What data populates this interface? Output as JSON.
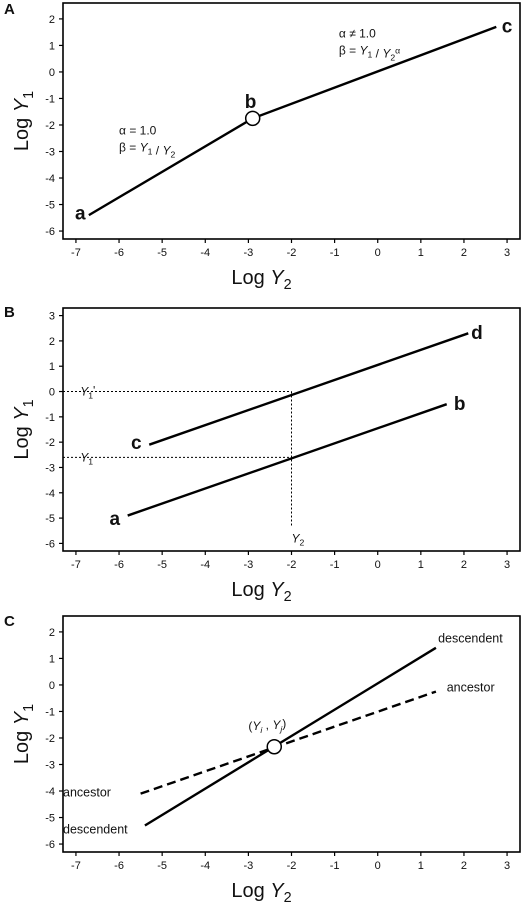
{
  "chart_data": [
    {
      "type": "line",
      "panel_label": "A",
      "xlabel": "Log Y2",
      "ylabel": "Log Y1",
      "xlim": [
        -7.3,
        3.3
      ],
      "ylim": [
        -6.3,
        2.6
      ],
      "xticks": [
        -7,
        -6,
        -5,
        -4,
        -3,
        -2,
        -1,
        0,
        1,
        2,
        3
      ],
      "yticks": [
        -6,
        -5,
        -4,
        -3,
        -2,
        -1,
        0,
        1,
        2
      ],
      "series": [
        {
          "points": [
            [
              -6.7,
              -5.4
            ],
            [
              -2.9,
              -1.75
            ],
            [
              2.75,
              1.7
            ]
          ],
          "style": "solid",
          "color": "#000000"
        }
      ],
      "markers": [
        {
          "x": -2.9,
          "y": -1.75,
          "shape": "open-circle"
        }
      ],
      "point_labels": [
        {
          "text": "a",
          "x": -6.9,
          "y": -5.3
        },
        {
          "text": "b",
          "x": -2.95,
          "y": -1.1
        },
        {
          "text": "c",
          "x": 3.0,
          "y": 1.75
        }
      ],
      "annotations": [
        {
          "lines": [
            "α = 1.0",
            "β = Y1 / Y2"
          ],
          "x": -6.0,
          "y": -2.35
        },
        {
          "lines": [
            "α ≠ 1.0",
            "β = Y1 / Y2α"
          ],
          "x": -0.9,
          "y": 1.3
        }
      ]
    },
    {
      "type": "line",
      "panel_label": "B",
      "xlabel": "Log Y2",
      "ylabel": "Log Y1",
      "xlim": [
        -7.3,
        3.3
      ],
      "ylim": [
        -6.3,
        3.3
      ],
      "xticks": [
        -7,
        -6,
        -5,
        -4,
        -3,
        -2,
        -1,
        0,
        1,
        2,
        3
      ],
      "yticks": [
        -6,
        -5,
        -4,
        -3,
        -2,
        -1,
        0,
        1,
        2,
        3
      ],
      "series": [
        {
          "points": [
            [
              -5.8,
              -4.9
            ],
            [
              1.6,
              -0.5
            ]
          ],
          "style": "solid",
          "color": "#000000"
        },
        {
          "points": [
            [
              -5.3,
              -2.1
            ],
            [
              2.1,
              2.3
            ]
          ],
          "style": "solid",
          "color": "#000000"
        }
      ],
      "guides": [
        {
          "points": [
            [
              -7.3,
              -2.6
            ],
            [
              -2.0,
              -2.6
            ]
          ],
          "style": "dotted"
        },
        {
          "points": [
            [
              -7.3,
              0.0
            ],
            [
              -2.0,
              0.0
            ]
          ],
          "style": "dotted"
        },
        {
          "points": [
            [
              -2.0,
              0.0
            ],
            [
              -2.0,
              -5.3
            ]
          ],
          "style": "dotted"
        }
      ],
      "point_labels": [
        {
          "text": "a",
          "x": -6.1,
          "y": -5.0
        },
        {
          "text": "b",
          "x": 1.9,
          "y": -0.45
        },
        {
          "text": "c",
          "x": -5.6,
          "y": -2.0
        },
        {
          "text": "d",
          "x": 2.3,
          "y": 2.35
        }
      ],
      "guide_labels": [
        {
          "text": "Y1'",
          "x": -6.9,
          "y": 0.0
        },
        {
          "text": "Y1",
          "x": -6.9,
          "y": -2.6
        },
        {
          "text": "Y2",
          "x": -2.0,
          "y": -5.8
        }
      ]
    },
    {
      "type": "line",
      "panel_label": "C",
      "xlabel": "Log Y2",
      "ylabel": "Log Y1",
      "xlim": [
        -7.3,
        3.3
      ],
      "ylim": [
        -6.3,
        2.6
      ],
      "xticks": [
        -7,
        -6,
        -5,
        -4,
        -3,
        -2,
        -1,
        0,
        1,
        2,
        3
      ],
      "yticks": [
        -6,
        -5,
        -4,
        -3,
        -2,
        -1,
        0,
        1,
        2
      ],
      "series": [
        {
          "name": "descendent",
          "points": [
            [
              -5.4,
              -5.3
            ],
            [
              1.35,
              1.4
            ]
          ],
          "style": "solid",
          "color": "#000000"
        },
        {
          "name": "ancestor",
          "points": [
            [
              -5.5,
              -4.1
            ],
            [
              1.35,
              -0.25
            ]
          ],
          "style": "dashed",
          "color": "#000000"
        }
      ],
      "markers": [
        {
          "x": -2.4,
          "y": -2.33,
          "shape": "open-circle"
        }
      ],
      "series_labels": [
        {
          "text": "descendent",
          "x": 1.4,
          "y": 1.75
        },
        {
          "text": "ancestor",
          "x": 1.6,
          "y": -0.1
        },
        {
          "text": "ancestor",
          "x": -7.3,
          "y": -4.05
        },
        {
          "text": "descendent",
          "x": -7.3,
          "y": -5.45
        }
      ],
      "point_annotation": {
        "text": "(Yi , Yj)",
        "x": -3.0,
        "y": -1.7
      }
    }
  ]
}
